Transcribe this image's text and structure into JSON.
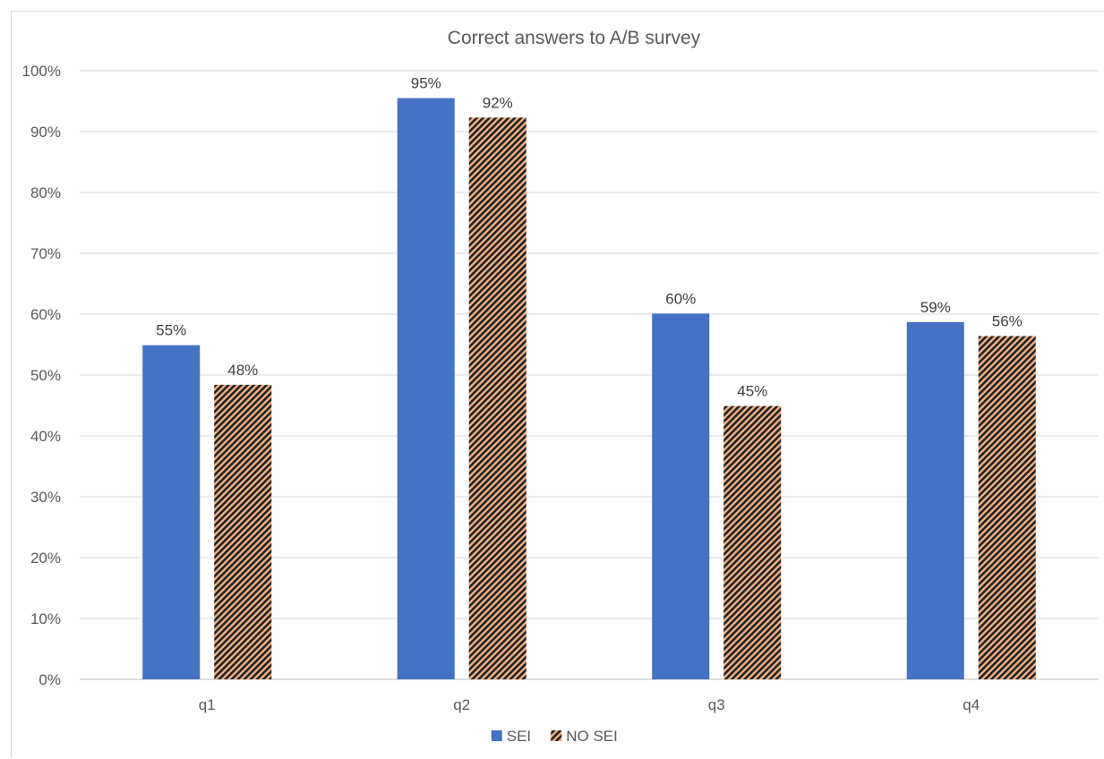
{
  "chart_data": {
    "type": "bar",
    "title": "Correct answers to A/B survey",
    "xlabel": "",
    "ylabel": "",
    "categories": [
      "q1",
      "q2",
      "q3",
      "q4"
    ],
    "ylim": [
      0,
      1
    ],
    "yticks": [
      "0%",
      "10%",
      "20%",
      "30%",
      "40%",
      "50%",
      "60%",
      "70%",
      "80%",
      "90%",
      "100%"
    ],
    "series": [
      {
        "name": "SEI",
        "values": [
          0.549,
          0.955,
          0.601,
          0.587
        ],
        "labels": [
          "55%",
          "95%",
          "60%",
          "59%"
        ],
        "color": "#4472c4",
        "pattern": "solid"
      },
      {
        "name": "NO SEI",
        "values": [
          0.484,
          0.923,
          0.449,
          0.564
        ],
        "labels": [
          "48%",
          "92%",
          "45%",
          "56%"
        ],
        "color": "#f4b183",
        "pattern": "diagonal-stripes-dark"
      }
    ],
    "grid": true,
    "legend_position": "bottom"
  }
}
